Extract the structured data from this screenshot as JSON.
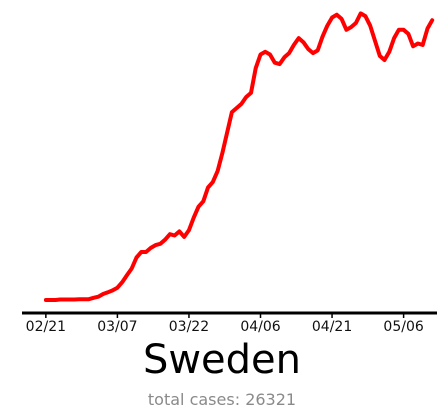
{
  "title": "Sweden",
  "subtitle": {
    "label": "total cases:",
    "value": "26321"
  },
  "colors": {
    "line": "#ff0000",
    "axis": "#000000",
    "subtitle": "#8a8a8a"
  },
  "chart_data": {
    "type": "line",
    "title": "Sweden",
    "xlabel": "",
    "ylabel": "",
    "grid": false,
    "legend": "none",
    "x_ticks": [
      {
        "day": 0,
        "label": "02/21"
      },
      {
        "day": 15,
        "label": "03/07"
      },
      {
        "day": 30,
        "label": "03/22"
      },
      {
        "day": 45,
        "label": "04/06"
      },
      {
        "day": 60,
        "label": "04/21"
      },
      {
        "day": 75,
        "label": "05/06"
      }
    ],
    "xlim": [
      -5,
      82
    ],
    "ylim": [
      0,
      1.05
    ],
    "series": [
      {
        "points": [
          [
            0,
            0.0
          ],
          [
            1,
            0.0
          ],
          [
            2,
            0.0
          ],
          [
            3,
            0.002
          ],
          [
            4,
            0.002
          ],
          [
            5,
            0.002
          ],
          [
            6,
            0.002
          ],
          [
            7,
            0.003
          ],
          [
            8,
            0.003
          ],
          [
            9,
            0.003
          ],
          [
            10,
            0.008
          ],
          [
            11,
            0.012
          ],
          [
            12,
            0.022
          ],
          [
            13,
            0.028
          ],
          [
            14,
            0.035
          ],
          [
            15,
            0.045
          ],
          [
            16,
            0.065
          ],
          [
            17,
            0.09
          ],
          [
            18,
            0.115
          ],
          [
            19,
            0.155
          ],
          [
            20,
            0.175
          ],
          [
            21,
            0.175
          ],
          [
            22,
            0.19
          ],
          [
            23,
            0.2
          ],
          [
            24,
            0.205
          ],
          [
            25,
            0.22
          ],
          [
            26,
            0.24
          ],
          [
            27,
            0.235
          ],
          [
            28,
            0.25
          ],
          [
            29,
            0.23
          ],
          [
            30,
            0.255
          ],
          [
            31,
            0.3
          ],
          [
            32,
            0.34
          ],
          [
            33,
            0.36
          ],
          [
            34,
            0.41
          ],
          [
            35,
            0.43
          ],
          [
            36,
            0.47
          ],
          [
            37,
            0.535
          ],
          [
            38,
            0.61
          ],
          [
            39,
            0.685
          ],
          [
            40,
            0.7
          ],
          [
            41,
            0.715
          ],
          [
            42,
            0.74
          ],
          [
            43,
            0.755
          ],
          [
            44,
            0.845
          ],
          [
            45,
            0.895
          ],
          [
            46,
            0.905
          ],
          [
            47,
            0.895
          ],
          [
            48,
            0.865
          ],
          [
            49,
            0.86
          ],
          [
            50,
            0.885
          ],
          [
            51,
            0.9
          ],
          [
            52,
            0.93
          ],
          [
            53,
            0.955
          ],
          [
            54,
            0.94
          ],
          [
            55,
            0.915
          ],
          [
            56,
            0.9
          ],
          [
            57,
            0.91
          ],
          [
            58,
            0.96
          ],
          [
            59,
            1.0
          ],
          [
            60,
            1.03
          ],
          [
            61,
            1.04
          ],
          [
            62,
            1.025
          ],
          [
            63,
            0.985
          ],
          [
            64,
            0.995
          ],
          [
            65,
            1.01
          ],
          [
            66,
            1.045
          ],
          [
            67,
            1.035
          ],
          [
            68,
            1.0
          ],
          [
            69,
            0.945
          ],
          [
            70,
            0.89
          ],
          [
            71,
            0.875
          ],
          [
            72,
            0.905
          ],
          [
            73,
            0.955
          ],
          [
            74,
            0.985
          ],
          [
            75,
            0.985
          ],
          [
            76,
            0.97
          ],
          [
            77,
            0.925
          ],
          [
            78,
            0.935
          ],
          [
            79,
            0.93
          ],
          [
            80,
            0.99
          ],
          [
            81,
            1.02
          ]
        ]
      }
    ]
  }
}
